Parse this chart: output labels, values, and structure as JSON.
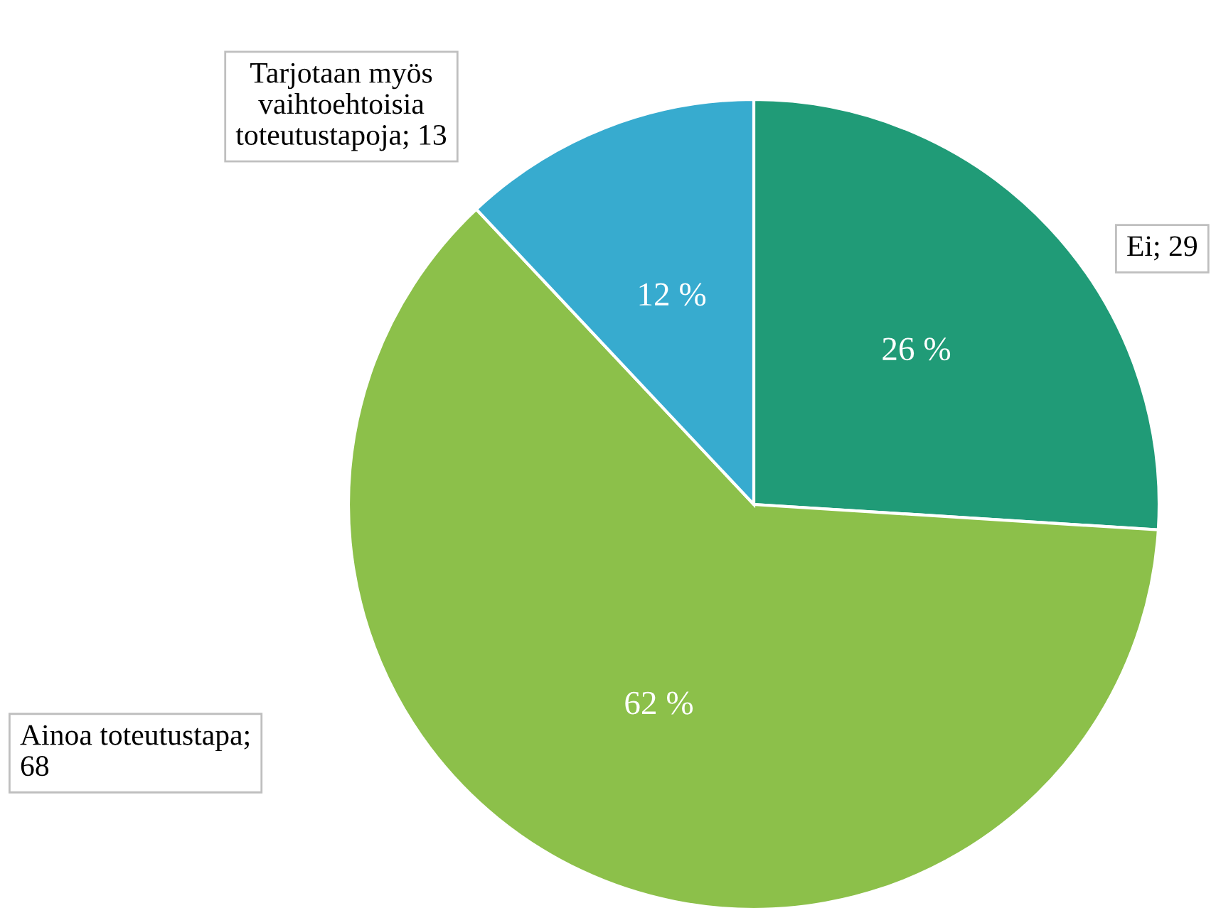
{
  "chart_data": {
    "type": "pie",
    "categories": [
      "Ei; 29",
      "Ainoa toteutustapa; 68",
      "Tarjotaan myös vaihtoehtoisia toteutustapoja; 13"
    ],
    "values": [
      26,
      62,
      12
    ],
    "value_labels": [
      "26 %",
      "62 %",
      "12 %"
    ],
    "colors": [
      "#209b77",
      "#8cc04a",
      "#37abcf"
    ]
  }
}
